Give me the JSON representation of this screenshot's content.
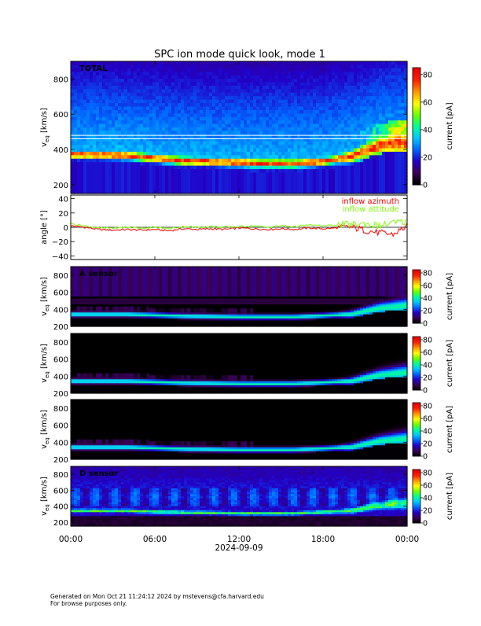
{
  "title": "SPC ion mode quick look, mode 1",
  "footer": {
    "line1": "Generated on Mon Oct 21 11:24:12 2024 by mstevens@cfa.harvard.edu",
    "line2": "For browse purposes only."
  },
  "colors": {
    "spectrogram_scale": [
      "#000000",
      "#3a0057",
      "#2200c8",
      "#0066ff",
      "#00c8ff",
      "#00ff96",
      "#6cff00",
      "#ffff00",
      "#ff9900",
      "#ff2200",
      "#e80000"
    ],
    "inflow_azimuth": "#ff0000",
    "inflow_attitude": "#7cff00"
  },
  "x_axis": {
    "ticks": [
      "00:00",
      "06:00",
      "12:00",
      "18:00",
      "00:00"
    ],
    "tick_hours": [
      0,
      6,
      12,
      18,
      24
    ],
    "date_label": "2024-09-09"
  },
  "colorbar": {
    "label": "current [pA]",
    "ticks": [
      "0",
      "20",
      "40",
      "60",
      "80"
    ],
    "range": [
      0,
      85
    ]
  },
  "chart_data": [
    {
      "type": "heatmap",
      "panel_label": "TOTAL",
      "ylabel_main": "v",
      "ylabel_sub": "eq",
      "ylabel_unit": "[km/s]",
      "yticks": [
        "200",
        "400",
        "600",
        "800"
      ],
      "ylim": [
        150,
        900
      ],
      "x_hours": [
        0,
        2,
        4,
        6,
        8,
        10,
        12,
        14,
        16,
        18,
        20,
        21,
        22,
        23,
        24
      ],
      "ridge_speed_km_s": [
        370,
        370,
        365,
        350,
        335,
        330,
        325,
        320,
        320,
        330,
        360,
        390,
        420,
        440,
        440
      ],
      "white_lines_km_s": [
        460,
        480
      ]
    },
    {
      "type": "line",
      "ylabel": "angle [°]",
      "yticks": [
        "40",
        "20",
        "0",
        "−20",
        "−40"
      ],
      "ylim": [
        -45,
        45
      ],
      "series": [
        {
          "name": "inflow azimuth",
          "x_hours": [
            0,
            1,
            2,
            3,
            4,
            5,
            6,
            7,
            8,
            9,
            10,
            11,
            12,
            13,
            14,
            15,
            16,
            17,
            18,
            19,
            20,
            21,
            22,
            23,
            24
          ],
          "values": [
            2,
            0,
            -3,
            -4,
            -3,
            -4,
            -3,
            -5,
            -2,
            -3,
            -2,
            -3,
            -1,
            -2,
            -3,
            -2,
            -3,
            -1,
            -2,
            -1,
            0,
            -4,
            -8,
            -10,
            2
          ]
        },
        {
          "name": "inflow attitude",
          "x_hours": [
            0,
            1,
            2,
            3,
            4,
            5,
            6,
            7,
            8,
            9,
            10,
            11,
            12,
            13,
            14,
            15,
            16,
            17,
            18,
            19,
            20,
            21,
            22,
            23,
            24
          ],
          "values": [
            5,
            2,
            -1,
            -1,
            0,
            -1,
            0,
            -2,
            1,
            0,
            1,
            0,
            1,
            2,
            0,
            2,
            1,
            3,
            2,
            3,
            4,
            5,
            2,
            6,
            8
          ]
        }
      ]
    },
    {
      "type": "heatmap",
      "panel_label": "A sensor",
      "ylabel_main": "v",
      "ylabel_sub": "eq",
      "ylabel_unit": "[km/s]",
      "yticks": [
        "200",
        "400",
        "600",
        "800"
      ],
      "ylim": [
        200,
        900
      ],
      "x_hours": [
        0,
        4,
        8,
        12,
        16,
        20,
        22,
        24
      ],
      "ridge_speed_km_s": [
        340,
        340,
        320,
        310,
        310,
        340,
        410,
        440
      ]
    },
    {
      "type": "heatmap",
      "panel_label": "",
      "ylabel_main": "v",
      "ylabel_sub": "eq",
      "ylabel_unit": "[km/s]",
      "yticks": [
        "200",
        "400",
        "600",
        "800"
      ],
      "ylim": [
        200,
        900
      ],
      "x_hours": [
        0,
        4,
        8,
        12,
        16,
        20,
        22,
        24
      ],
      "ridge_speed_km_s": [
        340,
        340,
        320,
        310,
        310,
        340,
        410,
        440
      ]
    },
    {
      "type": "heatmap",
      "panel_label": "",
      "ylabel_main": "v",
      "ylabel_sub": "eq",
      "ylabel_unit": "[km/s]",
      "yticks": [
        "200",
        "400",
        "600",
        "800"
      ],
      "ylim": [
        200,
        900
      ],
      "x_hours": [
        0,
        4,
        8,
        12,
        16,
        20,
        22,
        24
      ],
      "ridge_speed_km_s": [
        340,
        340,
        320,
        310,
        310,
        340,
        410,
        440
      ]
    },
    {
      "type": "heatmap",
      "panel_label": "D sensor",
      "ylabel_main": "v",
      "ylabel_sub": "eq",
      "ylabel_unit": "[km/s]",
      "yticks": [
        "200",
        "400",
        "600",
        "800"
      ],
      "ylim": [
        150,
        900
      ],
      "x_hours": [
        0,
        4,
        8,
        12,
        16,
        20,
        22,
        24
      ],
      "ridge_speed_km_s": [
        340,
        340,
        320,
        310,
        310,
        340,
        410,
        440
      ]
    }
  ]
}
